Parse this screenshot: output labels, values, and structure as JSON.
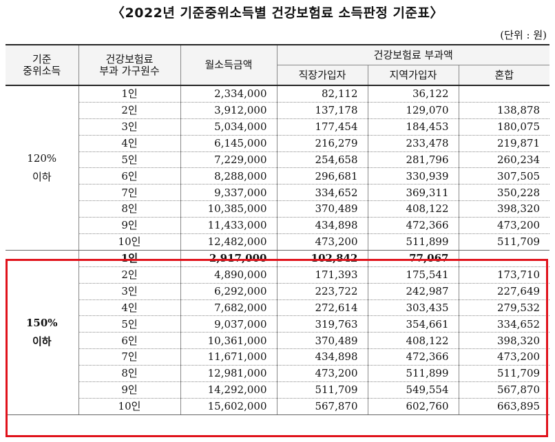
{
  "title": "〈2022년 기준중위소득별 건강보험료 소득판정 기준표〉",
  "unit": "(단위 : 원)",
  "headers": {
    "base": "기준\n중위소득",
    "households": "건강보험료\n부과 가구원수",
    "income": "월소득금액",
    "premium": "건강보험료 부과액",
    "employee": "직장가입자",
    "regional": "지역가입자",
    "mixed": "혼합"
  },
  "groups": [
    {
      "label": "120%\n이하",
      "rows": [
        {
          "n": "1인",
          "income": "2,334,000",
          "employee": "82,112",
          "regional": "36,122",
          "mixed": ""
        },
        {
          "n": "2인",
          "income": "3,912,000",
          "employee": "137,178",
          "regional": "129,070",
          "mixed": "138,878"
        },
        {
          "n": "3인",
          "income": "5,034,000",
          "employee": "177,454",
          "regional": "184,453",
          "mixed": "180,075"
        },
        {
          "n": "4인",
          "income": "6,145,000",
          "employee": "216,279",
          "regional": "233,478",
          "mixed": "219,871"
        },
        {
          "n": "5인",
          "income": "7,229,000",
          "employee": "254,658",
          "regional": "281,796",
          "mixed": "260,234"
        },
        {
          "n": "6인",
          "income": "8,288,000",
          "employee": "296,681",
          "regional": "330,939",
          "mixed": "307,505"
        },
        {
          "n": "7인",
          "income": "9,337,000",
          "employee": "334,652",
          "regional": "369,311",
          "mixed": "350,228"
        },
        {
          "n": "8인",
          "income": "10,385,000",
          "employee": "370,489",
          "regional": "408,122",
          "mixed": "398,320"
        },
        {
          "n": "9인",
          "income": "11,433,000",
          "employee": "434,898",
          "regional": "472,366",
          "mixed": "473,200"
        },
        {
          "n": "10인",
          "income": "12,482,000",
          "employee": "473,200",
          "regional": "511,899",
          "mixed": "511,709"
        }
      ]
    },
    {
      "label": "150%\n이하",
      "rows": [
        {
          "n": "1인",
          "income": "2,917,000",
          "employee": "102,842",
          "regional": "77,067",
          "mixed": ""
        },
        {
          "n": "2인",
          "income": "4,890,000",
          "employee": "171,393",
          "regional": "175,541",
          "mixed": "173,710"
        },
        {
          "n": "3인",
          "income": "6,292,000",
          "employee": "223,722",
          "regional": "242,987",
          "mixed": "227,649"
        },
        {
          "n": "4인",
          "income": "7,682,000",
          "employee": "272,614",
          "regional": "303,435",
          "mixed": "279,532"
        },
        {
          "n": "5인",
          "income": "9,037,000",
          "employee": "319,763",
          "regional": "354,661",
          "mixed": "334,652"
        },
        {
          "n": "6인",
          "income": "10,361,000",
          "employee": "370,489",
          "regional": "408,122",
          "mixed": "398,320"
        },
        {
          "n": "7인",
          "income": "11,671,000",
          "employee": "434,898",
          "regional": "472,366",
          "mixed": "473,200"
        },
        {
          "n": "8인",
          "income": "12,981,000",
          "employee": "473,200",
          "regional": "511,899",
          "mixed": "511,709"
        },
        {
          "n": "9인",
          "income": "14,292,000",
          "employee": "511,709",
          "regional": "549,554",
          "mixed": "567,870"
        },
        {
          "n": "10인",
          "income": "15,602,000",
          "employee": "567,870",
          "regional": "602,760",
          "mixed": "663,895"
        }
      ]
    }
  ],
  "highlight_color": "#e0121b"
}
